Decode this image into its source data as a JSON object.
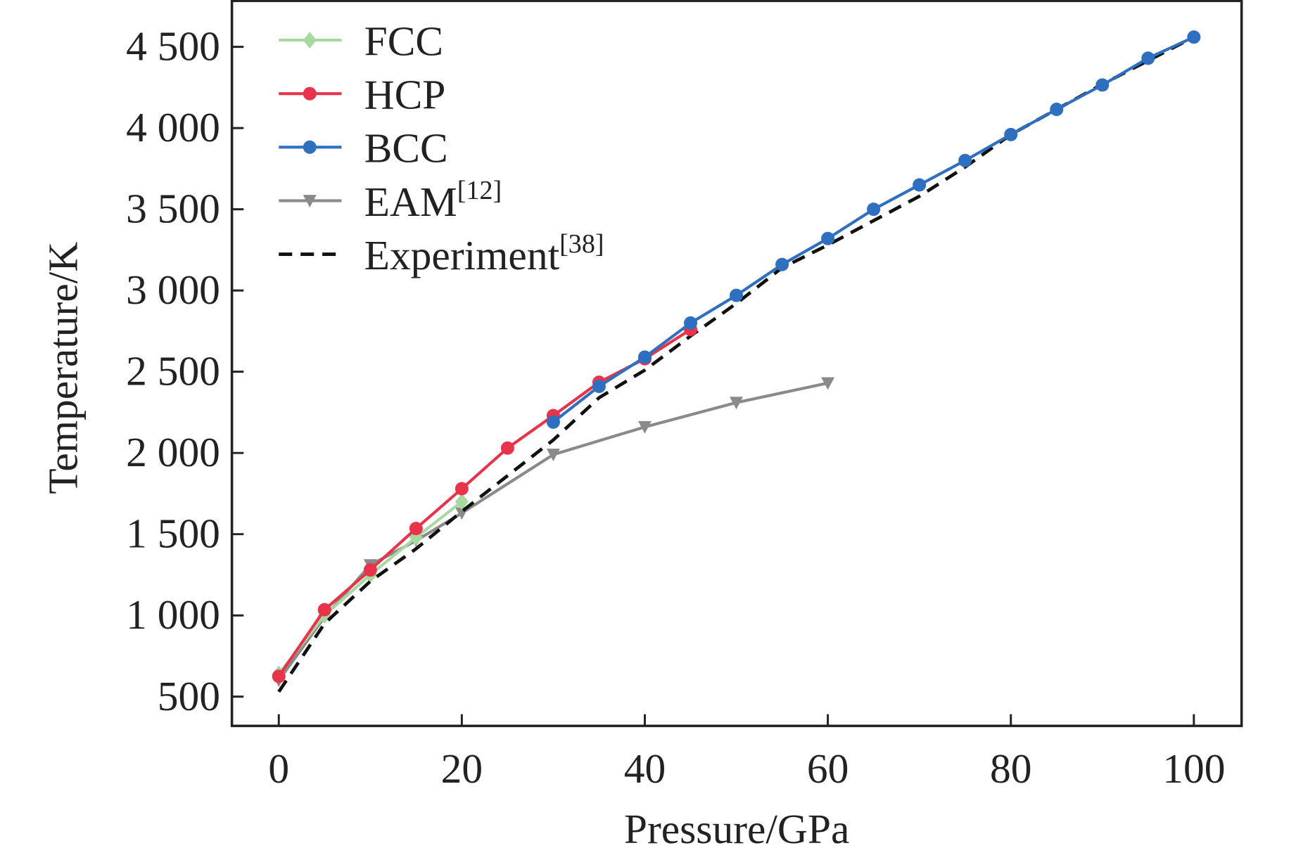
{
  "chart_data": {
    "type": "line",
    "title": "",
    "xlabel": "Pressure/GPa",
    "ylabel": "Temperature/K",
    "xlim": [
      -10,
      105
    ],
    "ylim": [
      290,
      4780
    ],
    "xticks": [
      0,
      20,
      40,
      60,
      80,
      100
    ],
    "xtick_labels": [
      "0",
      "20",
      "40",
      "60",
      "80",
      "100"
    ],
    "yticks": [
      500,
      1000,
      1500,
      2000,
      2500,
      3000,
      3500,
      4000,
      4500
    ],
    "ytick_labels": [
      "500",
      "1 000",
      "1 500",
      "2 000",
      "2 500",
      "3 000",
      "3 500",
      "4 000",
      "4 500"
    ],
    "grid": false,
    "legend_position": "top-left",
    "series": [
      {
        "name": "FCC",
        "sup": "",
        "color": "#a8d8a0",
        "marker": "diamond",
        "dash": false,
        "x": [
          0,
          5,
          10,
          15,
          20
        ],
        "y": [
          640,
          1000,
          1250,
          1480,
          1700
        ]
      },
      {
        "name": "HCP",
        "sup": "",
        "color": "#e8344a",
        "marker": "circle",
        "dash": false,
        "x": [
          0,
          5,
          10,
          15,
          20,
          25,
          30,
          35,
          40,
          45
        ],
        "y": [
          625,
          1035,
          1280,
          1535,
          1780,
          2030,
          2230,
          2435,
          2580,
          2760
        ]
      },
      {
        "name": "BCC",
        "sup": "",
        "color": "#2f6fc0",
        "marker": "circle",
        "dash": false,
        "x": [
          30,
          35,
          40,
          45,
          50,
          55,
          60,
          65,
          70,
          75,
          80,
          85,
          90,
          95,
          100
        ],
        "y": [
          2190,
          2410,
          2590,
          2800,
          2970,
          3160,
          3320,
          3500,
          3650,
          3800,
          3960,
          4115,
          4265,
          4430,
          4560
        ]
      },
      {
        "name": "EAM",
        "sup": "[12]",
        "color": "#8a8a8a",
        "marker": "triangle-down",
        "dash": false,
        "x": [
          0,
          5,
          10,
          15,
          20,
          30,
          40,
          50,
          60
        ],
        "y": [
          600,
          990,
          1310,
          1460,
          1630,
          1990,
          2160,
          2310,
          2430
        ]
      },
      {
        "name": "Experiment",
        "sup": "[38]",
        "color": "#111111",
        "marker": "none",
        "dash": true,
        "x": [
          0,
          5,
          10,
          15,
          20,
          30,
          35,
          40,
          45,
          50,
          55,
          60,
          70,
          75,
          80,
          90,
          100
        ],
        "y": [
          530,
          950,
          1210,
          1410,
          1640,
          2080,
          2340,
          2510,
          2720,
          2920,
          3140,
          3280,
          3580,
          3760,
          3960,
          4270,
          4560
        ]
      }
    ]
  }
}
